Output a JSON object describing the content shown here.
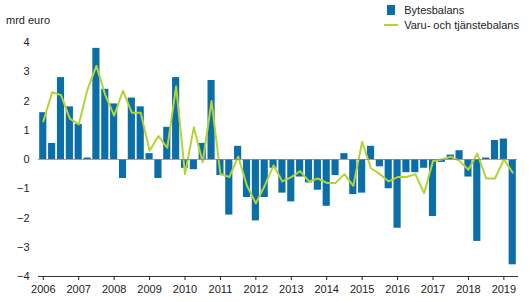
{
  "chart_data": {
    "type": "bar",
    "y_label": "mrd euro",
    "categories": [
      "2006",
      null,
      null,
      null,
      "2007",
      null,
      null,
      null,
      "2008",
      null,
      null,
      null,
      "2009",
      null,
      null,
      null,
      "2010",
      null,
      null,
      null,
      "2011",
      null,
      null,
      null,
      "2012",
      null,
      null,
      null,
      "2013",
      null,
      null,
      null,
      "2014",
      null,
      null,
      null,
      "2015",
      null,
      null,
      null,
      "2016",
      null,
      null,
      null,
      "2017",
      null,
      null,
      null,
      "2018",
      null,
      null,
      null,
      "2019",
      null
    ],
    "series": [
      {
        "name": "Bytesbalans",
        "type": "bar",
        "color": "#0a6ea8",
        "values": [
          1.6,
          0.55,
          2.8,
          1.8,
          1.2,
          0.05,
          3.8,
          2.4,
          1.9,
          -0.65,
          2.1,
          1.8,
          0.2,
          -0.65,
          1.1,
          2.8,
          -0.3,
          -0.35,
          0.55,
          2.7,
          -0.55,
          -1.9,
          0.45,
          -1.3,
          -2.1,
          -1.3,
          -0.3,
          -1.15,
          -1.45,
          -0.6,
          -0.8,
          -1.05,
          -1.6,
          -0.55,
          0.2,
          -1.2,
          -1.15,
          0.45,
          -0.25,
          -1.0,
          -2.35,
          -0.45,
          -0.45,
          -0.3,
          -1.95,
          -0.1,
          0.15,
          0.3,
          -0.6,
          -2.8,
          0.05,
          0.65,
          0.7,
          -3.6
        ]
      },
      {
        "name": "Varu- och tjänstebalans",
        "type": "line",
        "color": "#b5d334",
        "values": [
          1.3,
          2.3,
          2.2,
          1.4,
          1.2,
          2.4,
          3.2,
          2.2,
          1.5,
          2.35,
          1.6,
          1.6,
          0.3,
          0.8,
          0.4,
          2.5,
          -0.5,
          1.1,
          -0.1,
          2.0,
          -0.5,
          -0.6,
          0.1,
          -0.9,
          -1.5,
          -0.9,
          -0.2,
          -0.75,
          -0.6,
          -0.4,
          -0.75,
          -0.65,
          -0.8,
          -0.8,
          -0.5,
          -0.9,
          0.6,
          -0.3,
          -0.5,
          -0.75,
          -0.6,
          -0.6,
          -0.5,
          -1.15,
          -0.05,
          0.0,
          0.1,
          -0.05,
          -0.35,
          0.2,
          -0.65,
          -0.65,
          0.0,
          -0.45
        ]
      }
    ],
    "ylim": [
      -4,
      4
    ],
    "yticks": [
      -4,
      -3,
      -2,
      -1,
      0,
      1,
      2,
      3,
      4
    ],
    "grid": false,
    "legend": "top-right"
  }
}
